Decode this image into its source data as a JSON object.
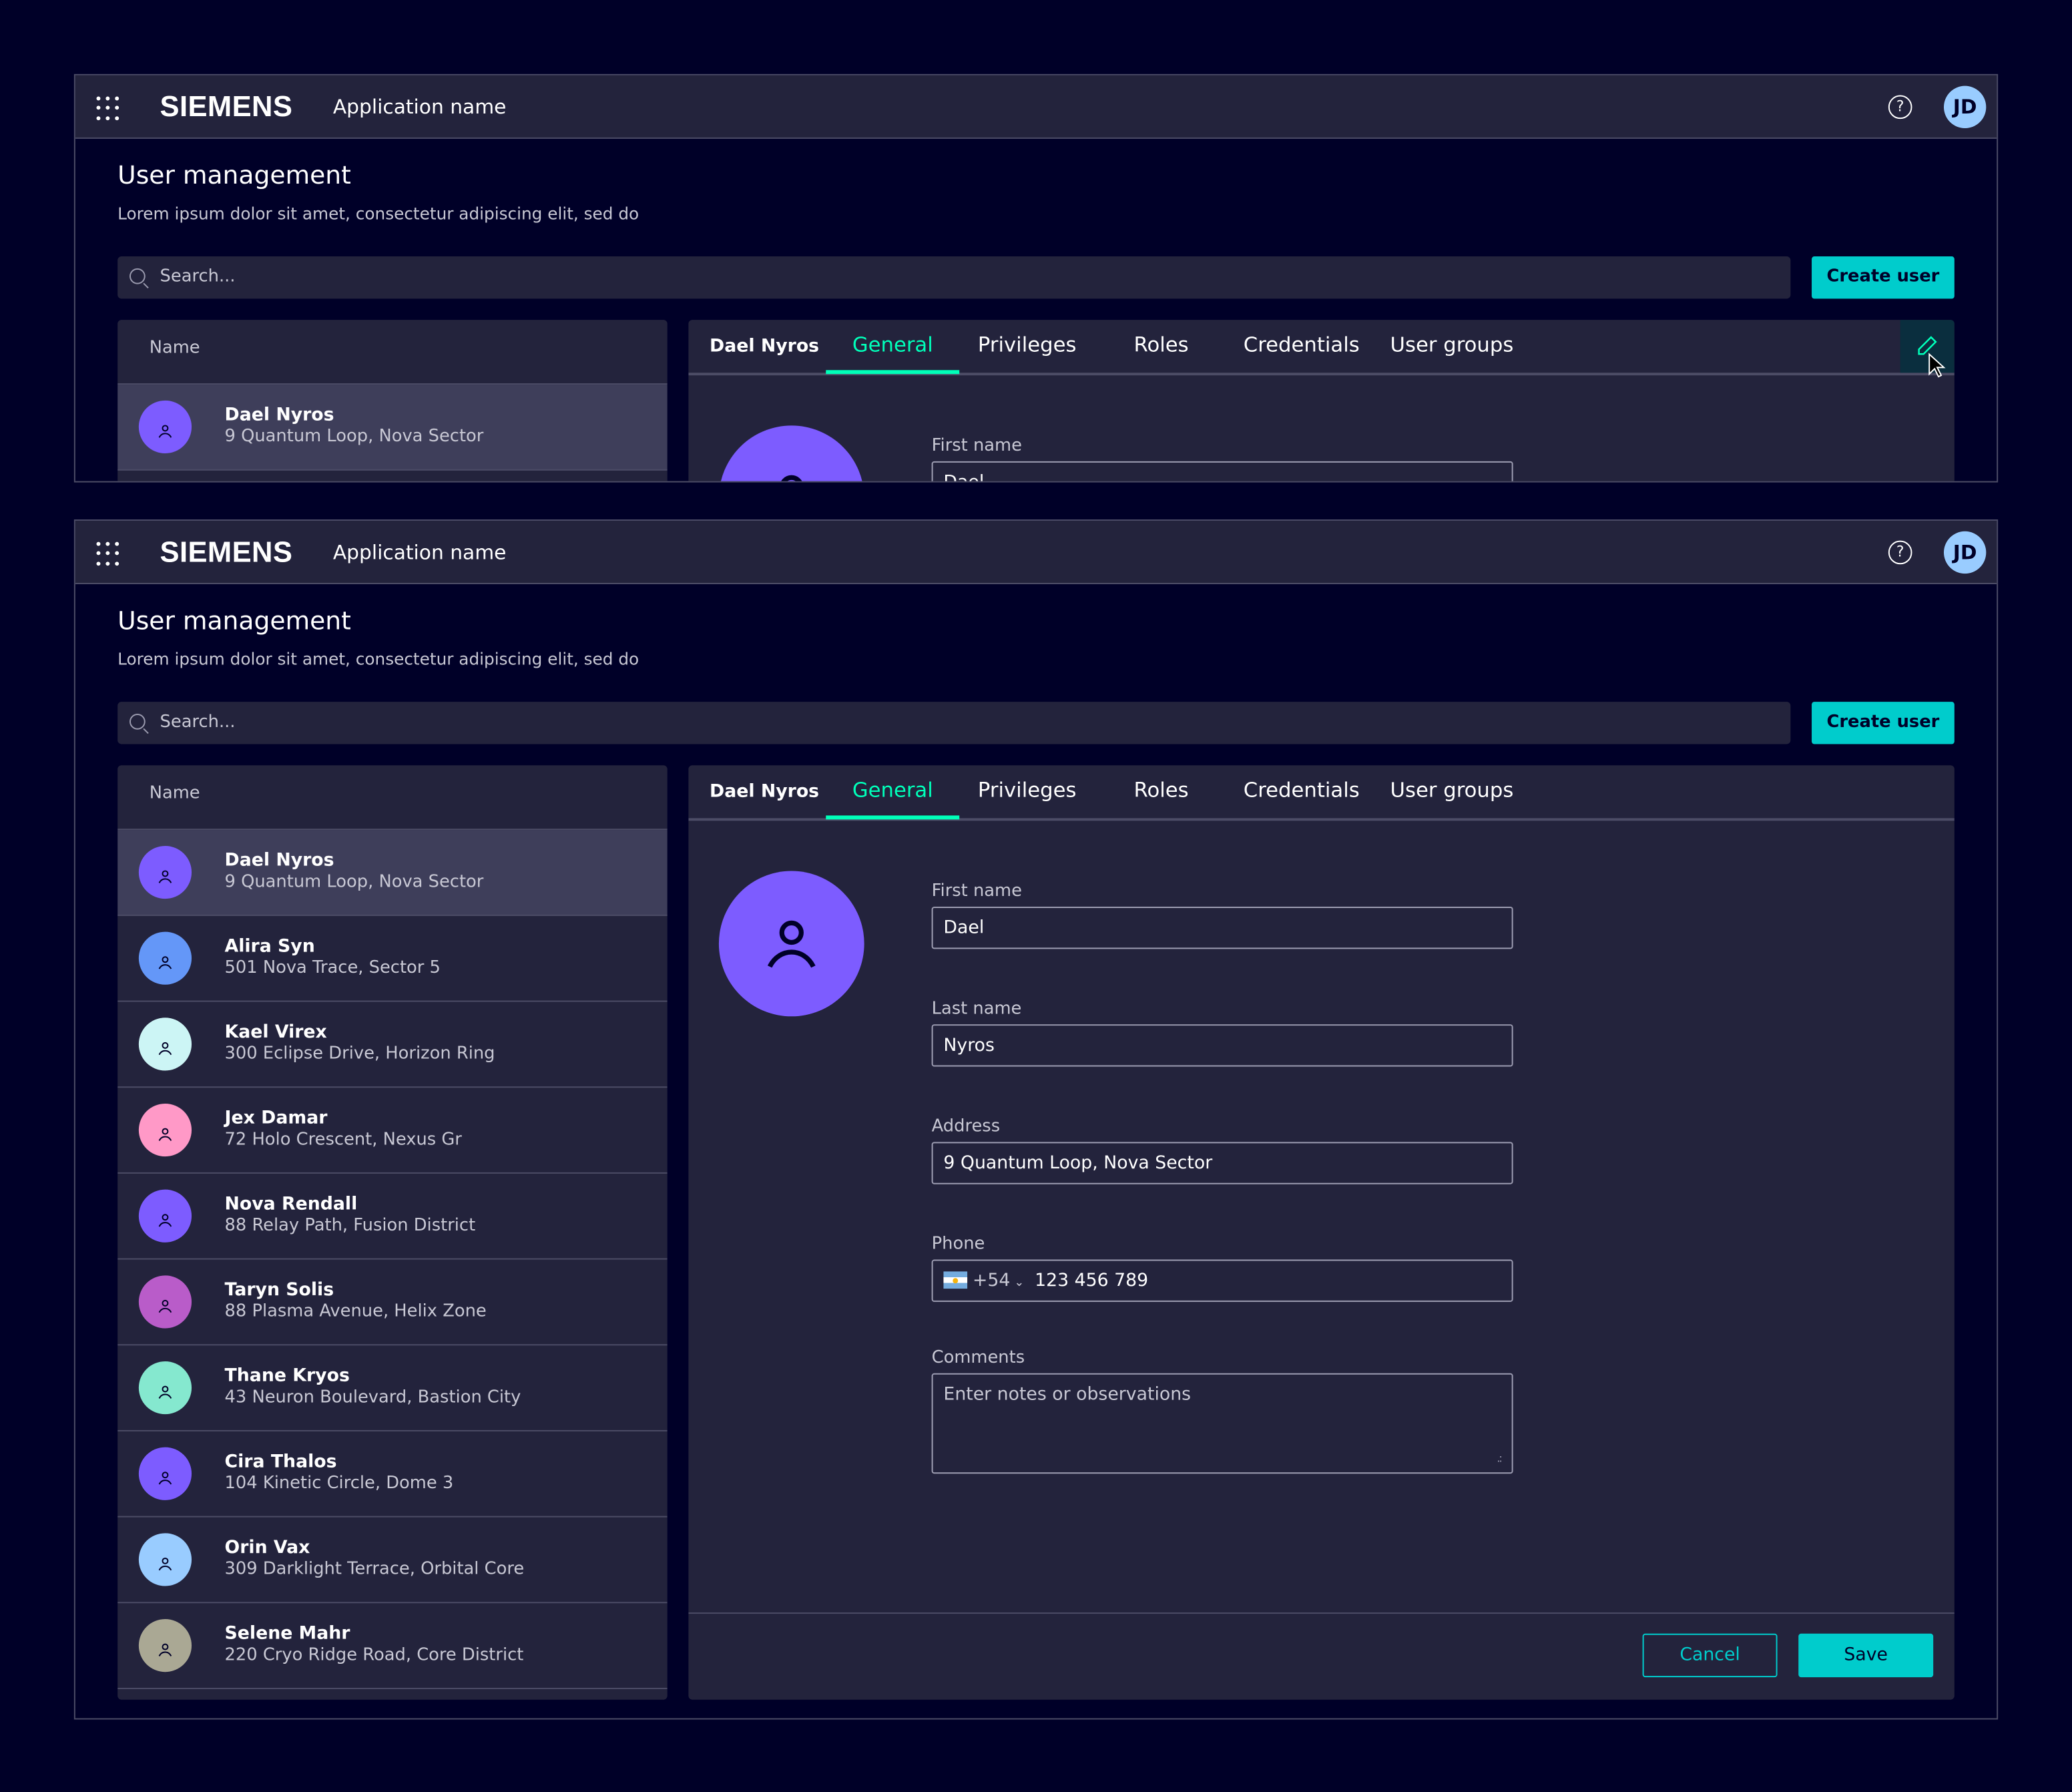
{
  "header": {
    "brand": "SIEMENS",
    "app_name": "Application name",
    "help_icon": "help-circle-icon",
    "user_initials": "JD",
    "apps_icon": "grid-dots-icon"
  },
  "page": {
    "title": "User management",
    "subtitle": "Lorem ipsum dolor sit amet, consectetur adipiscing elit, sed do"
  },
  "search": {
    "placeholder": "Search..."
  },
  "create_user_label": "Create user",
  "list": {
    "column_header": "Name",
    "selected_index": 0,
    "users": [
      {
        "name": "Dael Nyros",
        "address": "9 Quantum Loop, Nova Sector",
        "color": "#7d5cff"
      },
      {
        "name": "Alira Syn",
        "address": "501 Nova Trace, Sector 5",
        "color": "#6497f8"
      },
      {
        "name": "Kael Virex",
        "address": "300 Eclipse Drive, Horizon Ring",
        "color": "#ccf5f5"
      },
      {
        "name": "Jex Damar",
        "address": "72 Holo Crescent, Nexus Gr",
        "color": "#ff99c7"
      },
      {
        "name": "Nova Rendall",
        "address": "88 Relay Path, Fusion District",
        "color": "#7d5cff"
      },
      {
        "name": "Taryn Solis",
        "address": "88 Plasma Avenue, Helix Zone",
        "color": "#b95cc9"
      },
      {
        "name": "Thane Kryos",
        "address": "43 Neuron Boulevard, Bastion City",
        "color": "#85e8cf"
      },
      {
        "name": "Cira Thalos",
        "address": "104 Kinetic Circle, Dome 3",
        "color": "#7d5cff"
      },
      {
        "name": "Orin Vax",
        "address": "309 Darklight Terrace, Orbital Core",
        "color": "#99ccff"
      },
      {
        "name": "Selene Mahr",
        "address": "220 Cryo Ridge Road, Core District",
        "color": "#aaa894"
      }
    ]
  },
  "detail": {
    "user_name": "Dael Nyros",
    "tabs": [
      "General",
      "Privileges",
      "Roles",
      "Credentials",
      "User groups"
    ],
    "active_tab": "General",
    "form": {
      "first_name_label": "First name",
      "first_name": "Dael",
      "last_name_label": "Last name",
      "last_name": "Nyros",
      "address_label": "Address",
      "address": "9 Quantum Loop, Nova Sector",
      "phone_label": "Phone",
      "phone_country_code": "+54",
      "phone_flag": "argentina",
      "phone_number": "123 456 789",
      "comments_label": "Comments",
      "comments_placeholder": "Enter notes or observations"
    },
    "cancel_label": "Cancel",
    "save_label": "Save"
  },
  "colors": {
    "background": "#000028",
    "surface": "#23233c",
    "primary": "#00cccc",
    "tab_active": "#00ffb9",
    "selected_row": "#3e3e5a"
  }
}
